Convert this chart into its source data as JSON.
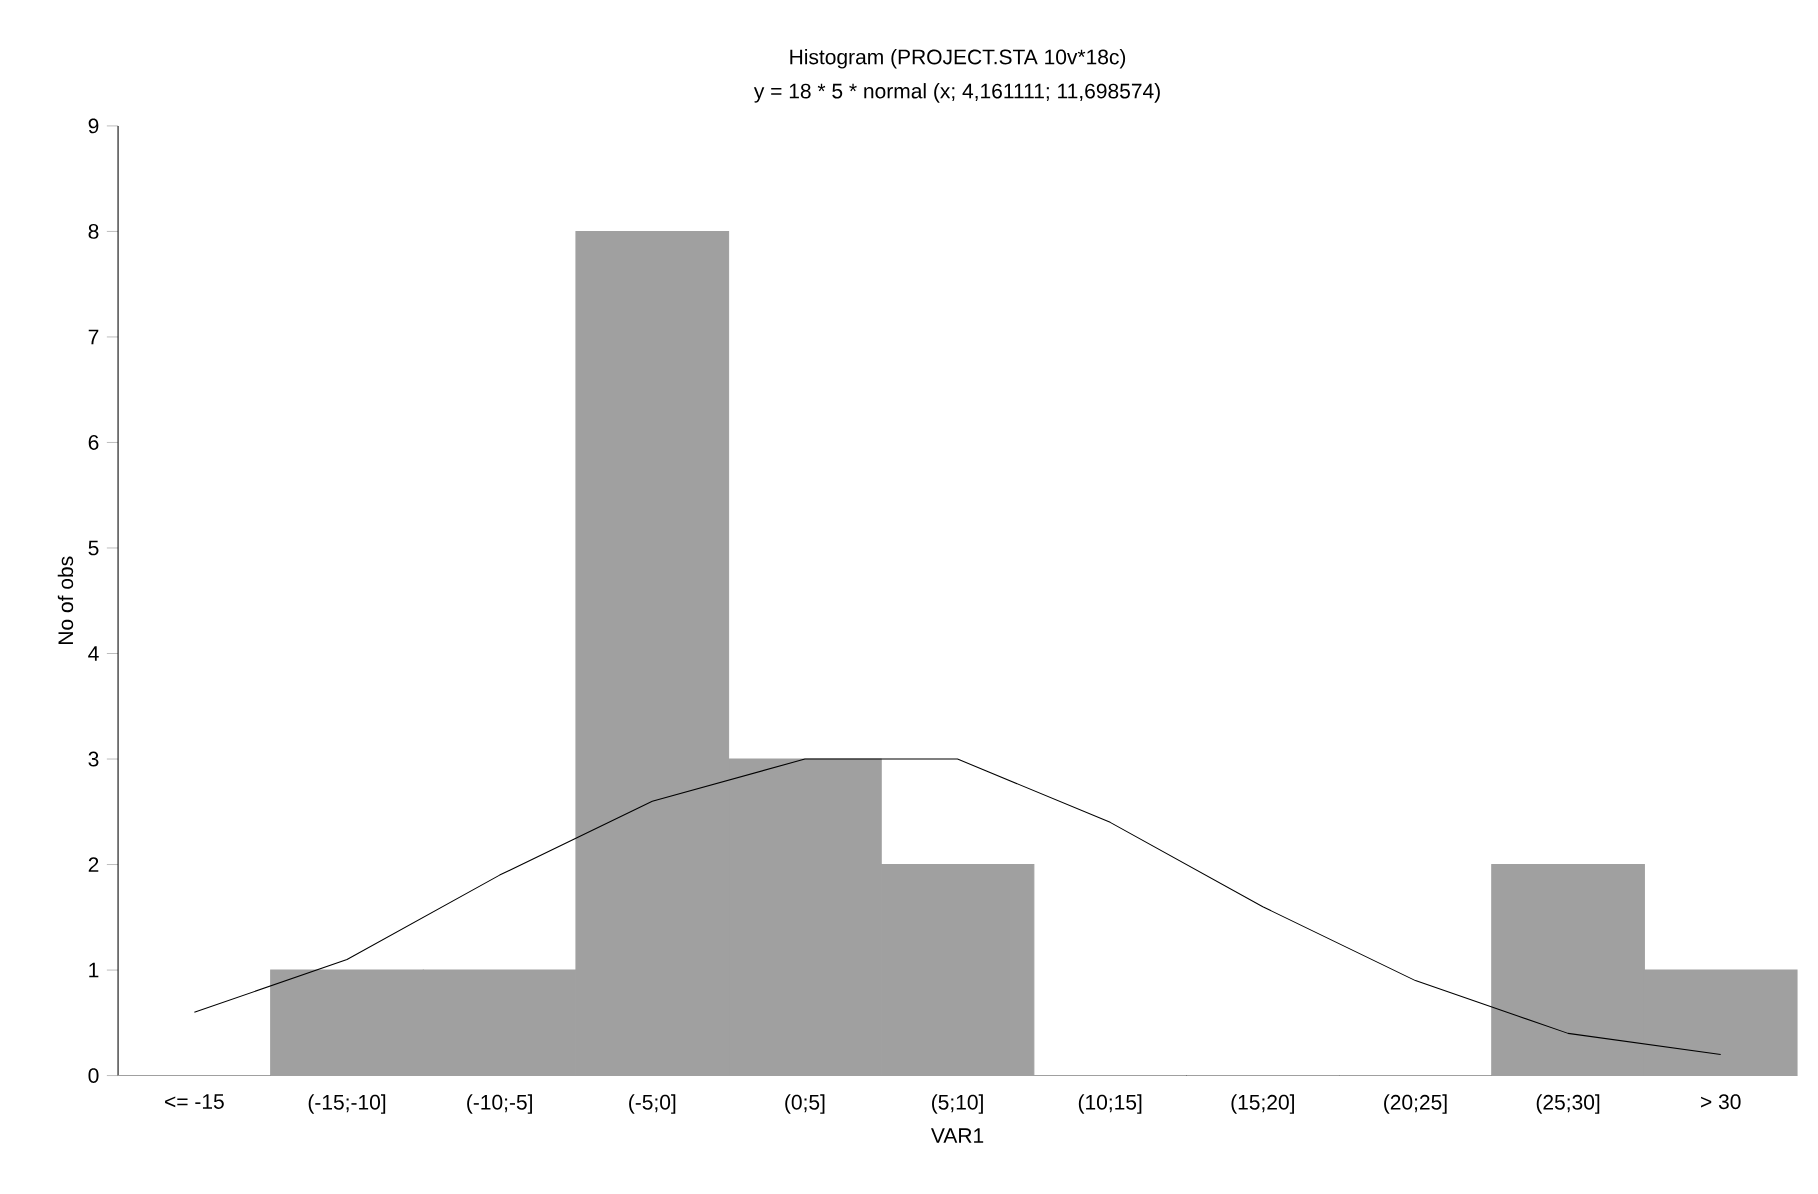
{
  "chart_data": {
    "type": "bar",
    "title": "Histogram (PROJECT.STA 10v*18c)",
    "subtitle": "y = 18 * 5 * normal (x; 4,161111; 11,698574)",
    "xlabel": "VAR1",
    "ylabel": "No of obs",
    "categories": [
      "<= -15",
      "(-15;-10]",
      "(-10;-5]",
      "(-5;0]",
      "(0;5]",
      "(5;10]",
      "(10;15]",
      "(15;20]",
      "(20;25]",
      "(25;30]",
      "> 30"
    ],
    "series": [
      {
        "color": "#a0a0a0",
        "values": [
          0,
          1,
          1,
          8,
          3,
          2,
          0,
          0,
          0,
          2,
          1
        ]
      },
      {
        "type": "line",
        "color": "#000000",
        "values": [
          0.6,
          1.1,
          1.9,
          2.6,
          3.0,
          3.0,
          2.4,
          1.6,
          0.9,
          0.4,
          0.2
        ]
      }
    ],
    "ylim": [
      0,
      9
    ],
    "yticks": [
      0,
      1,
      2,
      3,
      4,
      5,
      6,
      7,
      8,
      9
    ]
  }
}
